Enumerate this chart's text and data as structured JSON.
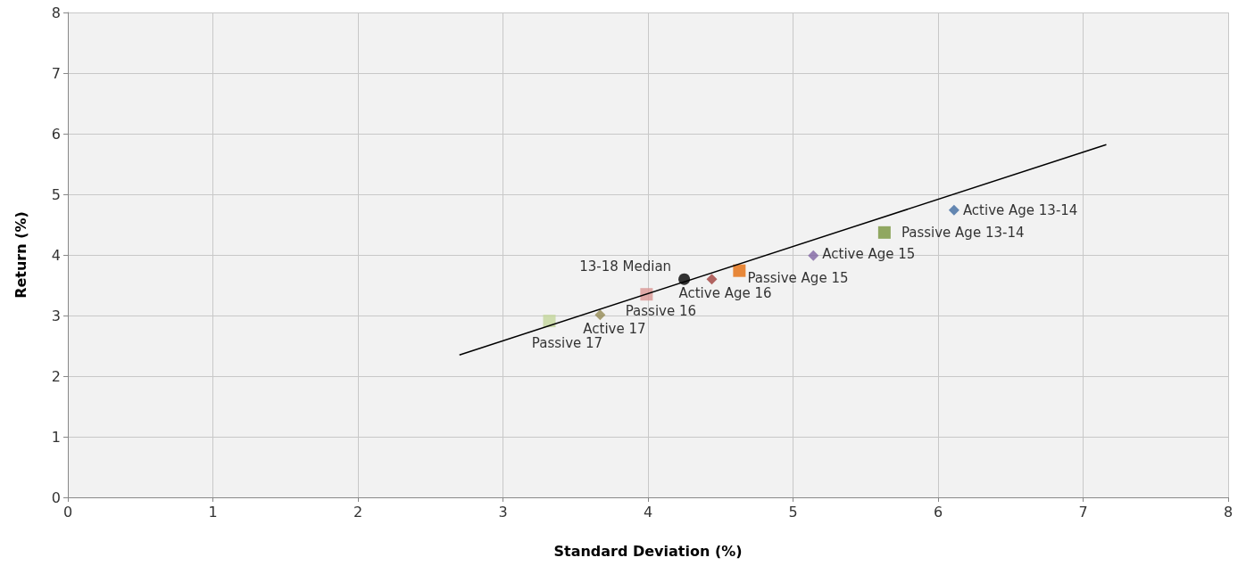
{
  "chart_data": {
    "type": "scatter",
    "xlabel": "Standard Deviation (%)",
    "ylabel": "Return (%)",
    "xlim": [
      0,
      8
    ],
    "xticks": [
      0,
      1,
      2,
      3,
      4,
      5,
      6,
      7,
      8
    ],
    "ylim": [
      0,
      8
    ],
    "yticks": [
      0,
      1,
      2,
      3,
      4,
      5,
      6,
      7,
      8
    ],
    "grid": true,
    "legend": false,
    "series": [
      {
        "name": "Active Age 13-14",
        "color": "#3e6aa0",
        "marker": "diamond",
        "x": [
          6.11
        ],
        "values": [
          4.74
        ]
      },
      {
        "name": "Passive Age 13-14",
        "color": "#77933c",
        "marker": "square",
        "x": [
          5.63
        ],
        "values": [
          4.37
        ]
      },
      {
        "name": "Active Age 15",
        "color": "#8064a2",
        "marker": "diamond",
        "x": [
          5.14
        ],
        "values": [
          3.99
        ]
      },
      {
        "name": "Passive Age 15",
        "color": "#e46c0a",
        "marker": "square",
        "x": [
          4.63
        ],
        "values": [
          3.74
        ]
      },
      {
        "name": "Active Age 16",
        "color": "#a0403c",
        "marker": "diamond",
        "x": [
          4.44
        ],
        "values": [
          3.6
        ]
      },
      {
        "name": "13-18 Median",
        "color": "#000000",
        "marker": "circle",
        "x": [
          4.25
        ],
        "values": [
          3.6
        ]
      },
      {
        "name": "Passive 16",
        "color": "#d99694",
        "marker": "square",
        "x": [
          3.99
        ],
        "values": [
          3.35
        ]
      },
      {
        "name": "Active 17",
        "color": "#948a54",
        "marker": "diamond",
        "x": [
          3.67
        ],
        "values": [
          3.01
        ]
      },
      {
        "name": "Passive 17",
        "color": "#c3d69b",
        "marker": "square",
        "x": [
          3.32
        ],
        "values": [
          2.91
        ]
      },
      {
        "type": "line",
        "color": "#000000",
        "marker": "none",
        "x": [
          2.7,
          7.16
        ],
        "values": [
          2.35,
          5.82
        ]
      }
    ]
  }
}
